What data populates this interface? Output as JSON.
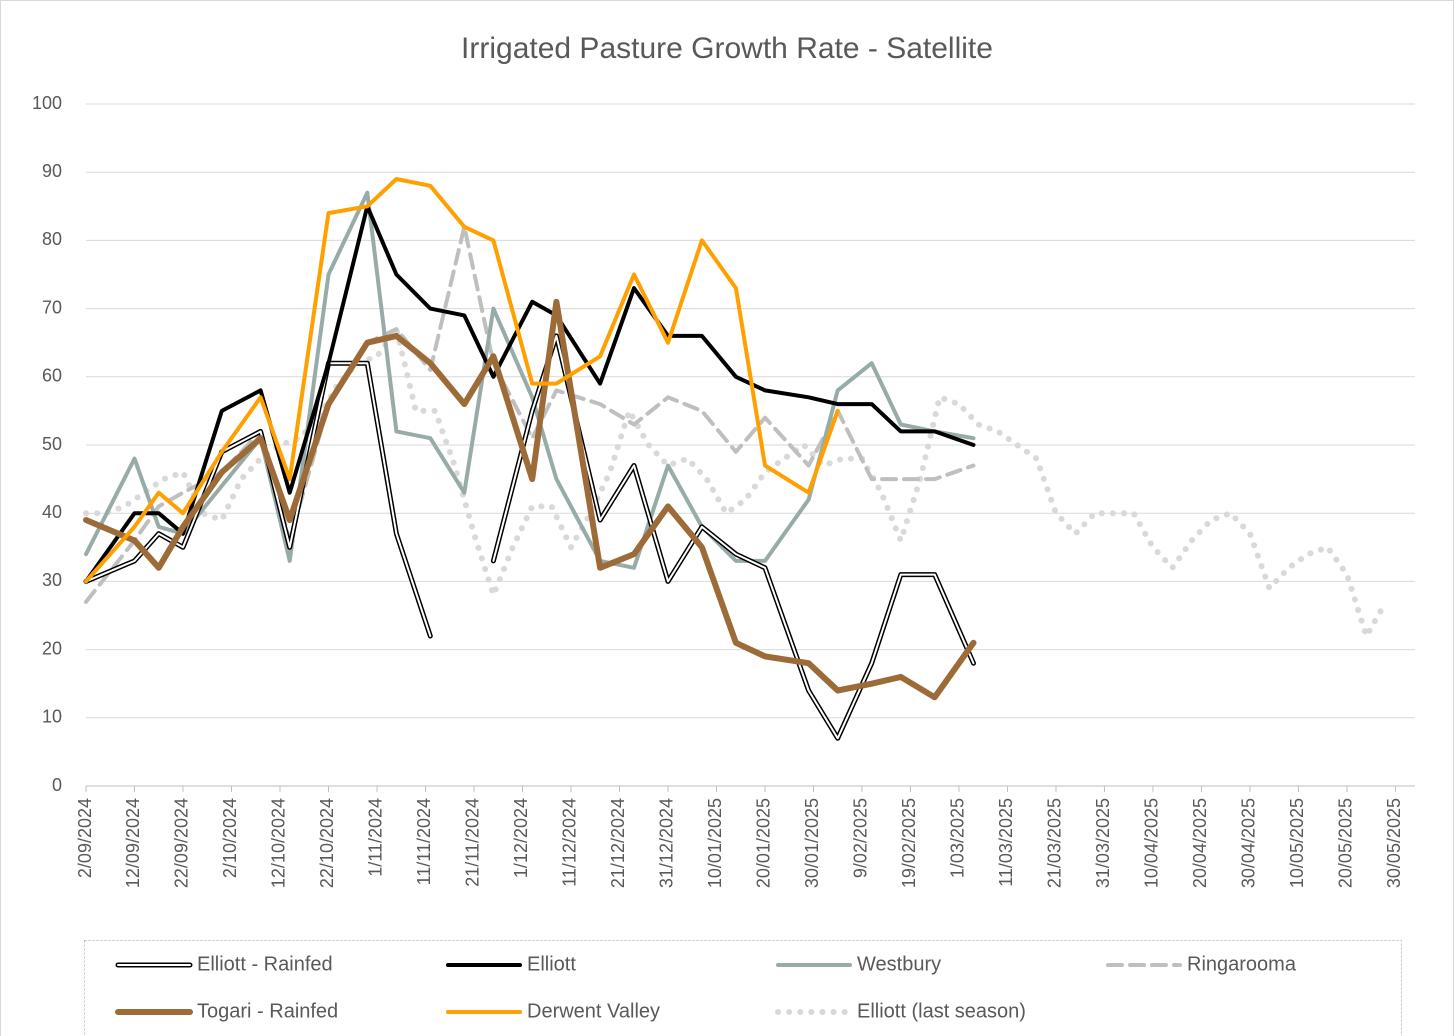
{
  "chart_data": {
    "type": "line",
    "title": "Irrigated Pasture Growth Rate  - Satellite",
    "x": [
      "2/09/2024",
      "12/09/2024",
      "17/09/2024",
      "22/09/2024",
      "30/09/2024",
      "8/10/2024",
      "14/10/2024",
      "22/10/2024",
      "30/10/2024",
      "5/11/2024",
      "12/11/2024",
      "19/11/2024",
      "25/11/2024",
      "3/12/2024",
      "8/12/2024",
      "17/12/2024",
      "24/12/2024",
      "31/12/2024",
      "7/01/2025",
      "14/01/2025",
      "20/01/2025",
      "29/01/2025",
      "4/02/2025",
      "11/02/2025",
      "17/02/2025",
      "24/02/2025",
      "4/03/2025"
    ],
    "series": [
      {
        "name": "Elliott - Rainfed",
        "color": "#000000",
        "style": "double",
        "values": [
          30,
          33,
          37,
          35,
          49,
          52,
          35,
          62,
          62,
          37,
          22,
          null,
          33,
          55,
          66,
          39,
          47,
          30,
          38,
          34,
          32,
          14,
          7,
          18,
          31,
          31,
          18
        ]
      },
      {
        "name": "Elliott",
        "color": "#000000",
        "style": "solid",
        "values": [
          30,
          40,
          40,
          37,
          55,
          58,
          43,
          62,
          85,
          75,
          70,
          69,
          60,
          71,
          69,
          59,
          73,
          66,
          66,
          60,
          58,
          57,
          56,
          56,
          52,
          52,
          50
        ]
      },
      {
        "name": "Westbury",
        "color": "#97aba9",
        "style": "solid",
        "values": [
          34,
          48,
          38,
          37,
          44,
          51,
          33,
          75,
          87,
          52,
          51,
          43,
          70,
          57,
          45,
          33,
          32,
          47,
          38,
          33,
          33,
          42,
          58,
          62,
          53,
          52,
          51
        ]
      },
      {
        "name": "Ringarooma",
        "color": "#bfbfbf",
        "style": "dashed",
        "values": [
          27,
          36,
          41,
          43,
          46,
          52,
          36,
          56,
          65,
          67,
          61,
          82,
          62,
          51,
          58,
          56,
          53,
          57,
          55,
          49,
          54,
          47,
          55,
          45,
          45,
          45,
          47
        ]
      },
      {
        "name": "Togari - Rainfed",
        "color": "#9c6b38",
        "style": "thick",
        "values": [
          39,
          36,
          32,
          38,
          46,
          51,
          39,
          56,
          65,
          66,
          62,
          56,
          63,
          45,
          71,
          32,
          34,
          41,
          35,
          21,
          19,
          18,
          14,
          15,
          16,
          13,
          21
        ]
      },
      {
        "name": "Derwent Valley",
        "color": "#ffa000",
        "style": "solid",
        "values": [
          30,
          38,
          43,
          40,
          49,
          57,
          45,
          84,
          85,
          89,
          88,
          82,
          80,
          59,
          59,
          63,
          75,
          65,
          80,
          73,
          47,
          43,
          55,
          null,
          null,
          null,
          null
        ]
      },
      {
        "name": "Elliott (last season)",
        "color": "#d9d9d9",
        "style": "dotted",
        "x": [
          "2/09/2024",
          "6/09/2024",
          "10/09/2024",
          "14/09/2024",
          "18/09/2024",
          "22/09/2024",
          "26/09/2024",
          "30/09/2024",
          "4/10/2024",
          "8/10/2024",
          "12/10/2024",
          "16/10/2024",
          "20/10/2024",
          "24/10/2024",
          "28/10/2024",
          "1/11/2024",
          "5/11/2024",
          "9/11/2024",
          "13/11/2024",
          "17/11/2024",
          "21/11/2024",
          "25/11/2024",
          "29/11/2024",
          "3/12/2024",
          "7/12/2024",
          "11/12/2024",
          "15/12/2024",
          "19/12/2024",
          "23/12/2024",
          "27/12/2024",
          "31/12/2024",
          "4/01/2025",
          "8/01/2025",
          "12/01/2025",
          "16/01/2025",
          "20/01/2025",
          "24/01/2025",
          "28/01/2025",
          "1/02/2025",
          "5/02/2025",
          "9/02/2025",
          "13/02/2025",
          "17/02/2025",
          "21/02/2025",
          "25/02/2025",
          "1/03/2025",
          "5/03/2025",
          "9/03/2025",
          "13/03/2025",
          "17/03/2025",
          "21/03/2025",
          "25/03/2025",
          "29/03/2025",
          "2/04/2025",
          "6/04/2025",
          "10/04/2025",
          "14/04/2025",
          "18/04/2025",
          "22/04/2025",
          "26/04/2025",
          "30/04/2025",
          "4/05/2025",
          "8/05/2025",
          "12/05/2025",
          "16/05/2025",
          "20/05/2025",
          "24/05/2025",
          "28/05/2025"
        ],
        "values": [
          40,
          40,
          41,
          43,
          45,
          46,
          40,
          39,
          45,
          48,
          50,
          51,
          54,
          59,
          62,
          63,
          67,
          55,
          55,
          47,
          37,
          28,
          35,
          41,
          41,
          35,
          40,
          46,
          55,
          50,
          47,
          48,
          45,
          40,
          42,
          46,
          48,
          50,
          47,
          48,
          48,
          43,
          36,
          45,
          57,
          56,
          53,
          52,
          50,
          48,
          40,
          37,
          40,
          40,
          40,
          35,
          32,
          36,
          39,
          40,
          37,
          29,
          32,
          34,
          35,
          31,
          22,
          27
        ]
      }
    ],
    "xlim": [
      "2/09/2024",
      "2/06/2025"
    ],
    "xticks": [
      "2/09/2024",
      "12/09/2024",
      "22/09/2024",
      "2/10/2024",
      "12/10/2024",
      "22/10/2024",
      "1/11/2024",
      "11/11/2024",
      "21/11/2024",
      "1/12/2024",
      "11/12/2024",
      "21/12/2024",
      "31/12/2024",
      "10/01/2025",
      "20/01/2025",
      "30/01/2025",
      "9/02/2025",
      "19/02/2025",
      "1/03/2025",
      "11/03/2025",
      "21/03/2025",
      "31/03/2025",
      "10/04/2025",
      "20/04/2025",
      "30/04/2025",
      "10/05/2025",
      "20/05/2025",
      "30/05/2025"
    ],
    "ylim": [
      0,
      100
    ],
    "yticks": [
      0,
      10,
      20,
      30,
      40,
      50,
      60,
      70,
      80,
      90,
      100
    ],
    "grid": true,
    "legend": "bottom"
  }
}
